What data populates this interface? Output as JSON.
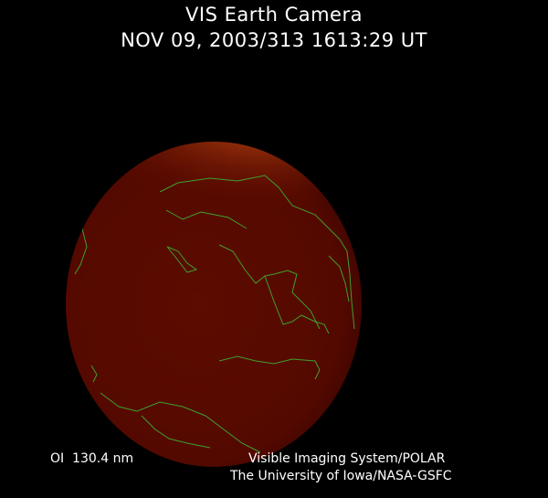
{
  "header": {
    "title": "VIS Earth Camera",
    "timestamp": "NOV 09, 2003/313 1613:29 UT"
  },
  "footer": {
    "filter": "OI  130.4 nm",
    "instrument": "Visible Imaging System/POLAR",
    "institution": "The University of Iowa/NASA-GSFC"
  },
  "colors": {
    "background": "#000000",
    "earth_disk": "#5a0a00",
    "aurora": "#e08a30",
    "coastlines": "#3fa02a"
  }
}
